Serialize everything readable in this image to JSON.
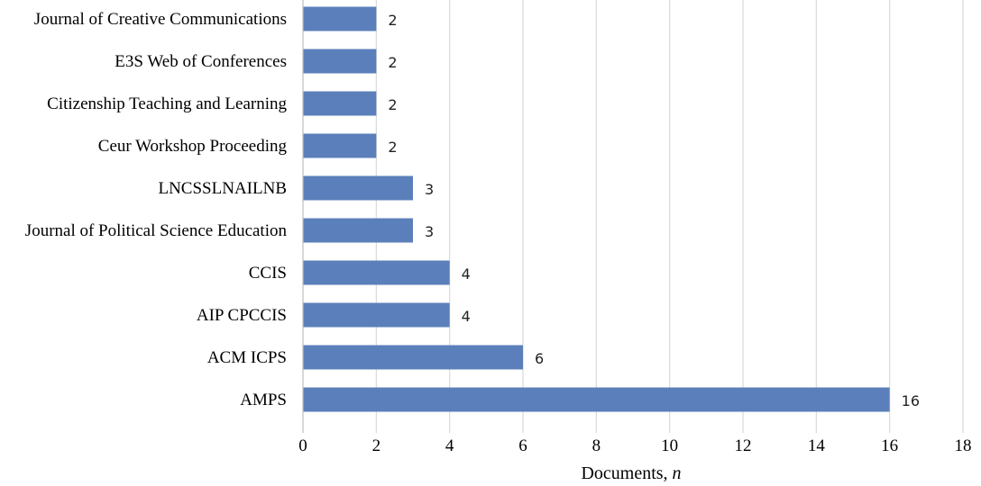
{
  "chart_data": {
    "type": "bar",
    "orientation": "horizontal",
    "categories": [
      "Journal of Creative Communications",
      "E3S Web of Conferences",
      "Citizenship Teaching and Learning",
      "Ceur Workshop Proceeding",
      "LNCSSLNAILNB",
      "Journal of Political Science Education",
      "CCIS",
      "AIP CPCCIS",
      "ACM ICPS",
      "AMPS"
    ],
    "values": [
      2,
      2,
      2,
      2,
      3,
      3,
      4,
      4,
      6,
      16
    ],
    "xlabel_main": "Documents, ",
    "xlabel_italic": "n",
    "xlim": [
      0,
      18
    ],
    "xticks": [
      0,
      2,
      4,
      6,
      8,
      10,
      12,
      14,
      16,
      18
    ],
    "grid": "vertical",
    "legend": "none",
    "bar_color": "#5b7fba",
    "grid_color": "#d9d9d9"
  }
}
